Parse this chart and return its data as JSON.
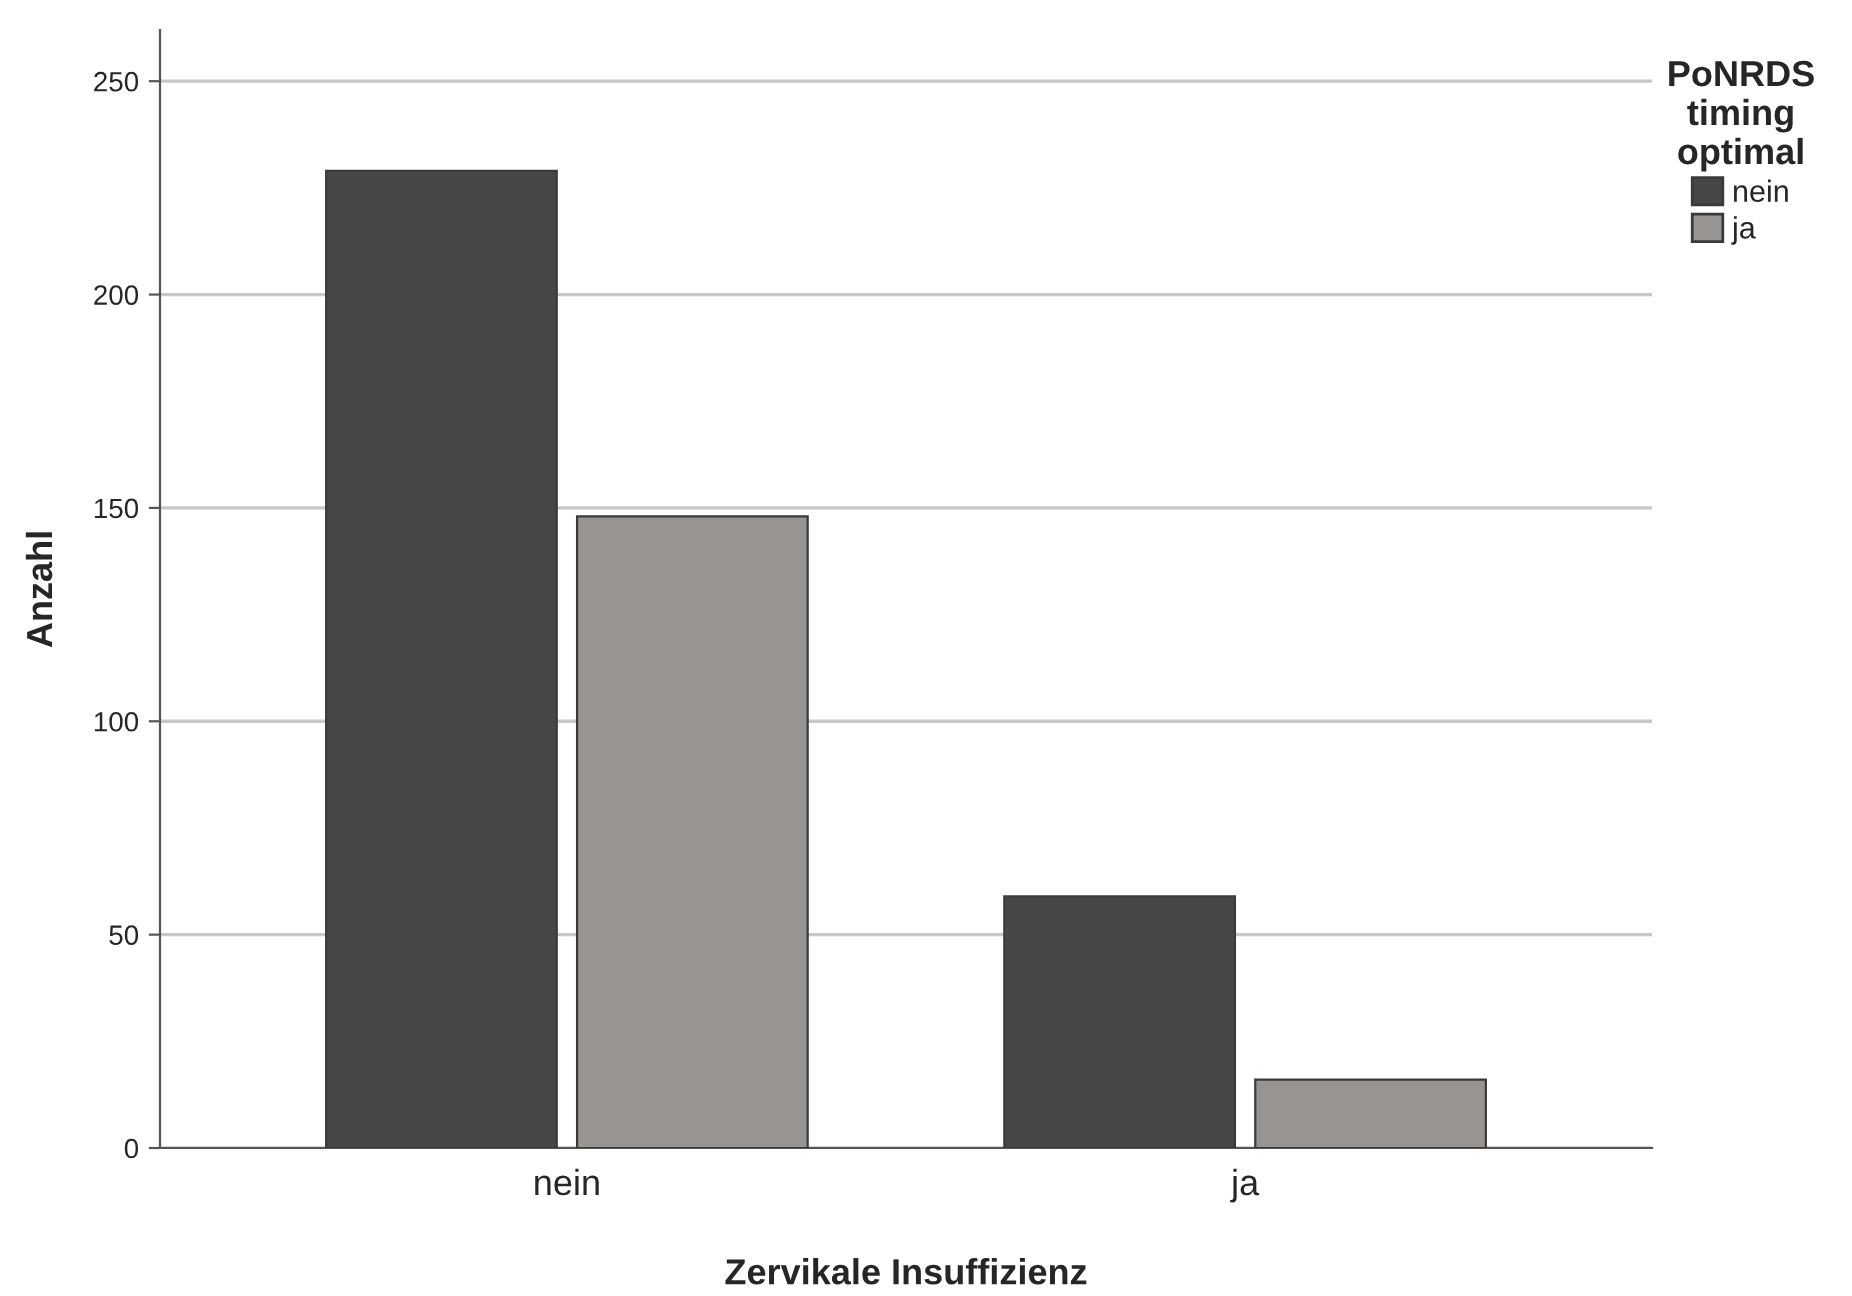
{
  "chart_data": {
    "type": "bar",
    "xlabel": "Zervikale Insuffizienz",
    "ylabel": "Anzahl",
    "legend_title": "PoNRDS\ntiming\noptimal",
    "categories": [
      "nein",
      "ja"
    ],
    "series": [
      {
        "name": "nein",
        "color": "#47474a",
        "values": [
          229,
          59
        ]
      },
      {
        "name": "ja",
        "color": "#979492",
        "values": [
          148,
          16
        ]
      }
    ],
    "ylim": [
      0,
      262
    ],
    "yticks": [
      0,
      50,
      100,
      150,
      200,
      250
    ],
    "grid": "y",
    "legend": "top right"
  }
}
